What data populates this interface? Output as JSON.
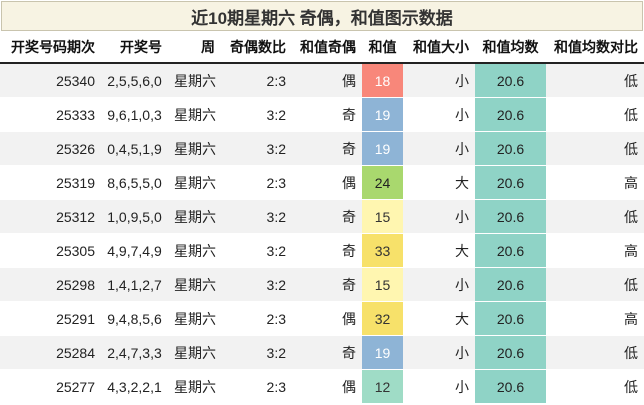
{
  "title": "近10期星期六 奇偶，和值图示数据",
  "headers": [
    "开奖号码期次",
    "开奖号",
    "周",
    "奇偶数比",
    "和值奇偶",
    "和值",
    "和值大小",
    "和值均数",
    "和值均数对比"
  ],
  "rows": [
    {
      "issue": "25340",
      "numbers": "2,5,5,6,0",
      "week": "星期六",
      "ratio": "2:3",
      "parity": "偶",
      "sum": "18",
      "size": "小",
      "avg": "20.6",
      "cmp": "低",
      "sum_bg": "#f8877a",
      "sum_fg": "#ffffff"
    },
    {
      "issue": "25333",
      "numbers": "9,6,1,0,3",
      "week": "星期六",
      "ratio": "3:2",
      "parity": "奇",
      "sum": "19",
      "size": "小",
      "avg": "20.6",
      "cmp": "低",
      "sum_bg": "#8eb4d6",
      "sum_fg": "#ffffff"
    },
    {
      "issue": "25326",
      "numbers": "0,4,5,1,9",
      "week": "星期六",
      "ratio": "3:2",
      "parity": "奇",
      "sum": "19",
      "size": "小",
      "avg": "20.6",
      "cmp": "低",
      "sum_bg": "#8eb4d6",
      "sum_fg": "#ffffff"
    },
    {
      "issue": "25319",
      "numbers": "8,6,5,5,0",
      "week": "星期六",
      "ratio": "2:3",
      "parity": "偶",
      "sum": "24",
      "size": "大",
      "avg": "20.6",
      "cmp": "高",
      "sum_bg": "#a9d86e",
      "sum_fg": "#222222"
    },
    {
      "issue": "25312",
      "numbers": "1,0,9,5,0",
      "week": "星期六",
      "ratio": "3:2",
      "parity": "奇",
      "sum": "15",
      "size": "小",
      "avg": "20.6",
      "cmp": "低",
      "sum_bg": "#fff6b0",
      "sum_fg": "#333333"
    },
    {
      "issue": "25305",
      "numbers": "4,9,7,4,9",
      "week": "星期六",
      "ratio": "3:2",
      "parity": "奇",
      "sum": "33",
      "size": "大",
      "avg": "20.6",
      "cmp": "高",
      "sum_bg": "#f7e16a",
      "sum_fg": "#333333"
    },
    {
      "issue": "25298",
      "numbers": "1,4,1,2,7",
      "week": "星期六",
      "ratio": "3:2",
      "parity": "奇",
      "sum": "15",
      "size": "小",
      "avg": "20.6",
      "cmp": "低",
      "sum_bg": "#fff6b0",
      "sum_fg": "#333333"
    },
    {
      "issue": "25291",
      "numbers": "9,4,8,5,6",
      "week": "星期六",
      "ratio": "2:3",
      "parity": "偶",
      "sum": "32",
      "size": "大",
      "avg": "20.6",
      "cmp": "高",
      "sum_bg": "#f7e16a",
      "sum_fg": "#333333"
    },
    {
      "issue": "25284",
      "numbers": "2,4,7,3,3",
      "week": "星期六",
      "ratio": "3:2",
      "parity": "奇",
      "sum": "19",
      "size": "小",
      "avg": "20.6",
      "cmp": "低",
      "sum_bg": "#8eb4d6",
      "sum_fg": "#ffffff"
    },
    {
      "issue": "25277",
      "numbers": "4,3,2,2,1",
      "week": "星期六",
      "ratio": "2:3",
      "parity": "偶",
      "sum": "12",
      "size": "小",
      "avg": "20.6",
      "cmp": "低",
      "sum_bg": "#9fdcc6",
      "sum_fg": "#333333"
    }
  ]
}
